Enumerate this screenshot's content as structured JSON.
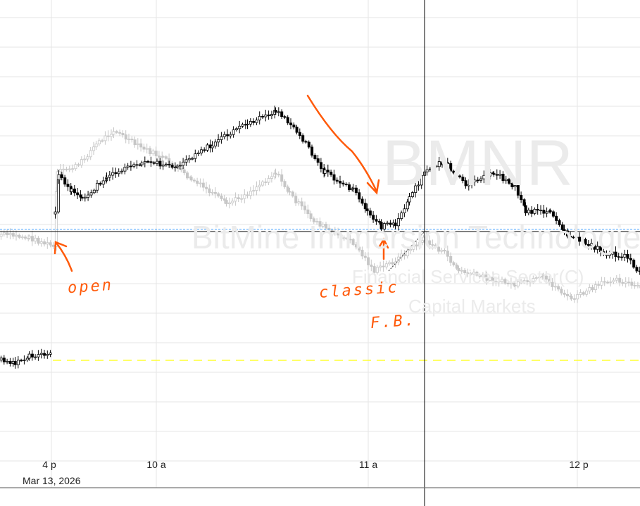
{
  "symbol": "BMNR",
  "company_name": "BitMine Immersion Technologies",
  "sector": "Financial Services Sector(C)",
  "industry": "Capital Markets",
  "x_axis": {
    "ticks": [
      "4 p",
      "10 a",
      "11 a",
      "12 p"
    ],
    "date_label": "Mar 13, 2026"
  },
  "annotations": {
    "open": "open",
    "classic": "classic",
    "fb": "F.B."
  },
  "colors": {
    "candle": "#000000",
    "compare_candle": "#c8c8c8",
    "annotation": "#ff5a0a",
    "prev_close_line": "#ffff33",
    "open_line": "#55aaff",
    "grid": "#e6e6e6"
  },
  "chart_data": {
    "type": "candlestick",
    "series": [
      {
        "name": "BMNR",
        "style": "black/white candles"
      },
      {
        "name": "Comparison (Financial Services)",
        "style": "gray candles"
      }
    ],
    "x_ticks": [
      "4 p",
      "10 a",
      "11 a",
      "12 p"
    ]
  }
}
